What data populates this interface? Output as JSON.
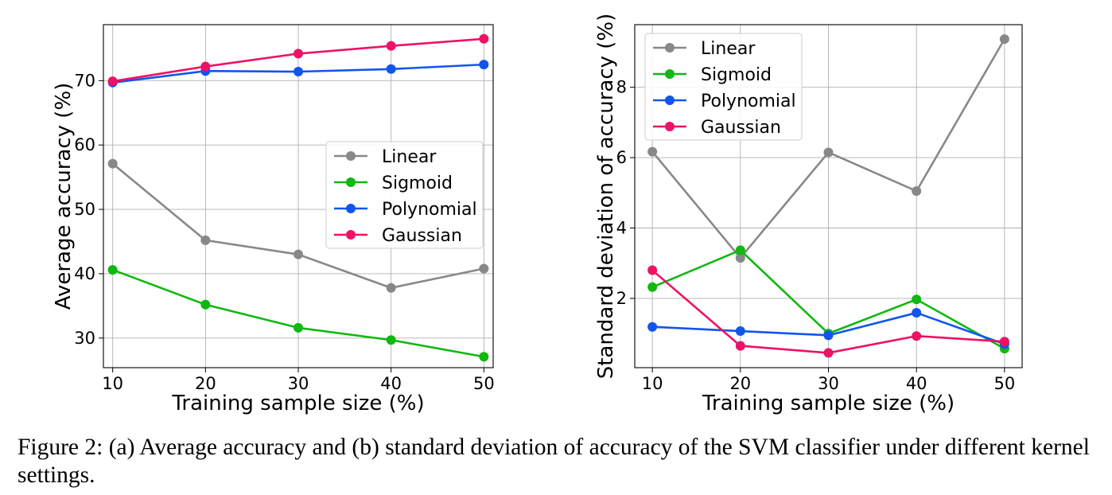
{
  "caption": "Figure 2: (a) Average accuracy and (b) standard deviation of accuracy of the SVM classifier under different kernel settings.",
  "colors": {
    "Linear": "#888888",
    "Sigmoid": "#10b810",
    "Polynomial": "#1155ee",
    "Gaussian": "#ee1166"
  },
  "chart_data": [
    {
      "type": "line",
      "xlabel": "Training sample size (%)",
      "ylabel": "Average accuracy (%)",
      "x": [
        10,
        20,
        30,
        40,
        50
      ],
      "xticks": [
        "10",
        "20",
        "30",
        "40",
        "50"
      ],
      "yticks": [
        "30",
        "40",
        "50",
        "60",
        "70"
      ],
      "xlim": [
        9,
        51
      ],
      "ylim": [
        25.4,
        78.7
      ],
      "grid": true,
      "legend_position": "center-right",
      "series": [
        {
          "name": "Linear",
          "values": [
            57.1,
            45.2,
            43.0,
            37.8,
            40.8
          ]
        },
        {
          "name": "Sigmoid",
          "values": [
            40.6,
            35.2,
            31.6,
            29.7,
            27.1
          ]
        },
        {
          "name": "Polynomial",
          "values": [
            69.7,
            71.5,
            71.4,
            71.8,
            72.5
          ]
        },
        {
          "name": "Gaussian",
          "values": [
            69.9,
            72.2,
            74.2,
            75.4,
            76.5
          ]
        }
      ]
    },
    {
      "type": "line",
      "xlabel": "Training sample size (%)",
      "ylabel": "Standard deviation of accuracy (%)",
      "x": [
        10,
        20,
        30,
        40,
        50
      ],
      "xticks": [
        "10",
        "20",
        "30",
        "40",
        "50"
      ],
      "yticks": [
        "2",
        "4",
        "6",
        "8"
      ],
      "xlim": [
        8,
        52
      ],
      "ylim": [
        0.03,
        9.78
      ],
      "grid": true,
      "legend_position": "top-left",
      "series": [
        {
          "name": "Linear",
          "values": [
            6.17,
            3.15,
            6.15,
            5.05,
            9.37
          ]
        },
        {
          "name": "Sigmoid",
          "values": [
            2.32,
            3.37,
            1.0,
            1.97,
            0.57
          ]
        },
        {
          "name": "Polynomial",
          "values": [
            1.19,
            1.07,
            0.95,
            1.59,
            0.7
          ]
        },
        {
          "name": "Gaussian",
          "values": [
            2.8,
            0.65,
            0.45,
            0.93,
            0.77
          ]
        }
      ]
    }
  ]
}
